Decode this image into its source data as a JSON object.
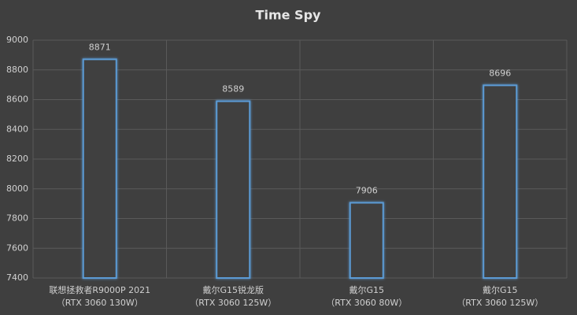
{
  "chart_data": {
    "type": "bar",
    "title": "Time Spy",
    "categories": [
      [
        "联想拯救者R9000P 2021",
        "（RTX 3060  130W）"
      ],
      [
        "戴尔G15锐龙版",
        "（RTX 3060 125W）"
      ],
      [
        "戴尔G15",
        "（RTX 3060 80W）"
      ],
      [
        "戴尔G15",
        "（RTX 3060 125W）"
      ]
    ],
    "values": [
      8871,
      8589,
      7906,
      8696
    ],
    "color": "#5b9bd5",
    "ylim": [
      7400,
      9000
    ],
    "yticks": [
      7400,
      7600,
      7800,
      8000,
      8200,
      8400,
      8600,
      8800,
      9000
    ],
    "grid": true
  }
}
